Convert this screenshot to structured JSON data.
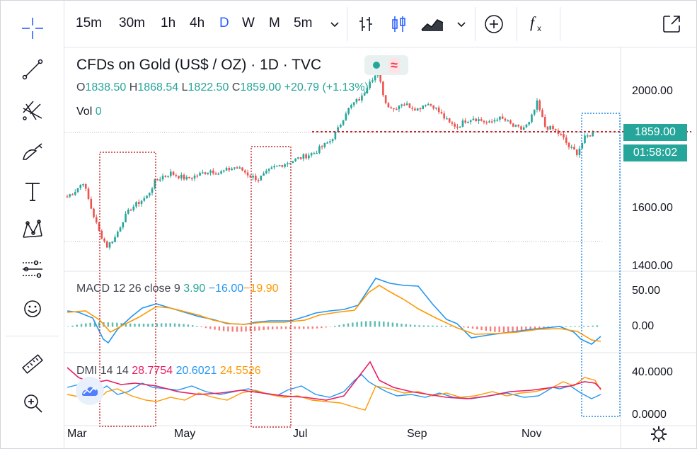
{
  "toolbar": {
    "timeframes": [
      "15m",
      "30m",
      "1h",
      "4h",
      "D",
      "W",
      "M",
      "5m"
    ],
    "active_timeframe": "D",
    "icons": [
      "chevron-down-icon",
      "bar-chart-icon",
      "candles-icon",
      "area-chart-icon",
      "chevron-down-icon",
      "add-compare-icon",
      "fx-indicators-icon",
      "fullscreen-icon"
    ]
  },
  "left_tools": [
    "crosshair-icon",
    "trend-line-icon",
    "pitchfork-icon",
    "brush-icon",
    "text-icon",
    "pattern-icon",
    "prediction-icon",
    "emoji-icon",
    "ruler-icon",
    "zoom-in-icon"
  ],
  "symbol": {
    "title": "CFDs on Gold (US$ / OZ) · 1D · TVC",
    "open_label": "O",
    "open": "1838.50",
    "high_label": "H",
    "high": "1868.54",
    "low_label": "L",
    "low": "1822.50",
    "close_label": "C",
    "close": "1859.00",
    "change": "+20.79 (+1.13%)",
    "vol_label": "Vol",
    "vol": "0",
    "wave_icon": "≈"
  },
  "price_tags": {
    "last": "1859.00",
    "countdown": "01:58:02"
  },
  "macd": {
    "label": "MACD 12 26 close 9",
    "v1": "3.90",
    "v2": "−16.00",
    "v3": "−19.90"
  },
  "dmi": {
    "label": "DMI 14 14",
    "v1": "28.7754",
    "v2": "20.6021",
    "v3": "24.5526"
  },
  "axes": {
    "price_ticks": [
      "2000.00",
      "1600.00",
      "1400.00"
    ],
    "macd_ticks": [
      "50.00",
      "0.00"
    ],
    "dmi_ticks": [
      "40.0000",
      "0.0000"
    ],
    "x_ticks": [
      "Mar",
      "May",
      "Jul",
      "Sep",
      "Nov"
    ]
  },
  "colors": {
    "up": "#26a69a",
    "down": "#ef5350",
    "macd": "#2196f3",
    "signal": "#ff9800",
    "dmi_plus": "#2196f3",
    "dmi_minus": "#ff9800",
    "adx": "#e91e63",
    "annotation_red": "#c62828",
    "annotation_blue": "#1e88e5",
    "accent": "#2962ff"
  },
  "chart_data": {
    "type": "candlestick",
    "price_levels": [
      1400,
      1600,
      2000
    ],
    "last_price": 1859.0,
    "closes": [
      1640,
      1660,
      1690,
      1600,
      1520,
      1470,
      1500,
      1560,
      1600,
      1620,
      1640,
      1690,
      1710,
      1720,
      1710,
      1700,
      1710,
      1720,
      1730,
      1720,
      1730,
      1740,
      1730,
      1710,
      1700,
      1720,
      1740,
      1750,
      1760,
      1770,
      1780,
      1790,
      1810,
      1830,
      1870,
      1930,
      1960,
      1980,
      2040,
      2060,
      1960,
      1940,
      1960,
      1950,
      1940,
      1960,
      1950,
      1920,
      1890,
      1880,
      1900,
      1910,
      1900,
      1890,
      1910,
      1900,
      1880,
      1870,
      1890,
      1960,
      1880,
      1870,
      1850,
      1810,
      1790,
      1840,
      1859
    ]
  }
}
